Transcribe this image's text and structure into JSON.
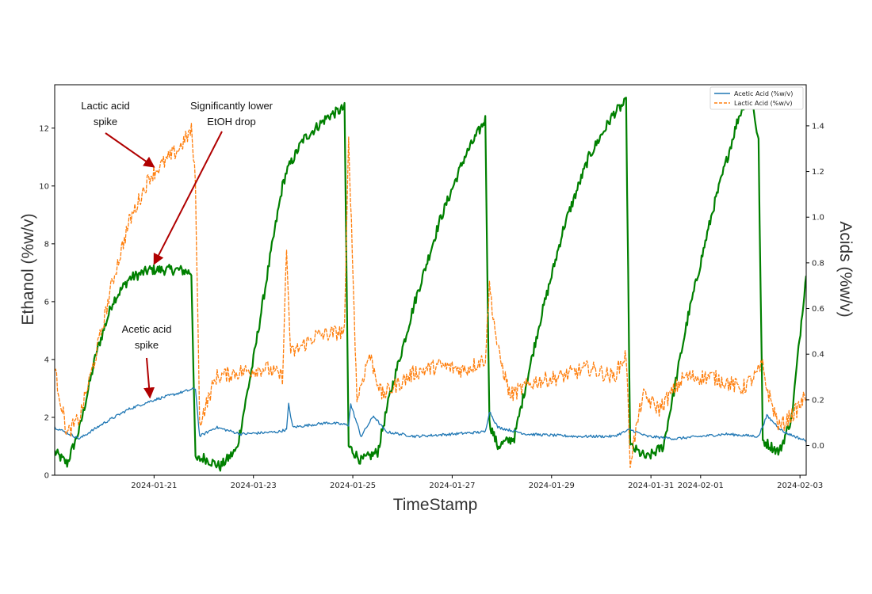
{
  "chart_data": {
    "type": "line",
    "xlabel": "TimeStamp",
    "ylabel_left": "Ethanol (%w/v)",
    "ylabel_right": "Acids (%w/v)",
    "x_range": [
      "2024-01-19T00:00",
      "2024-02-03T03:00"
    ],
    "ylim_left": [
      0,
      13.5
    ],
    "ylim_right": [
      -0.13,
      1.58
    ],
    "x_ticks": [
      "2024-01-21",
      "2024-01-23",
      "2024-01-25",
      "2024-01-27",
      "2024-01-29",
      "2024-01-31",
      "2024-02-01",
      "2024-02-03"
    ],
    "y_ticks_left": [
      0,
      2,
      4,
      6,
      8,
      10,
      12
    ],
    "y_ticks_right": [
      0.0,
      0.2,
      0.4,
      0.6,
      0.8,
      1.0,
      1.2,
      1.4
    ],
    "y_tick_labels_left": [
      "0",
      "2",
      "4",
      "6",
      "8",
      "10",
      "12"
    ],
    "y_tick_labels_right": [
      "0.0",
      "0.2",
      "0.4",
      "0.6",
      "0.8",
      "1.0",
      "1.2",
      "1.4"
    ],
    "grid": false,
    "legend": "top-right",
    "series": [
      {
        "name": "",
        "axis": "left",
        "color": "#008000",
        "style": "solid",
        "noise": 0.18,
        "points": [
          [
            "2024-01-19T00:00",
            0.8
          ],
          [
            "2024-01-19T06:00",
            0.4
          ],
          [
            "2024-01-19T12:00",
            1.6
          ],
          [
            "2024-01-19T20:00",
            4.2
          ],
          [
            "2024-01-20T04:00",
            6.0
          ],
          [
            "2024-01-20T12:00",
            6.8
          ],
          [
            "2024-01-20T22:00",
            7.1
          ],
          [
            "2024-01-21T12:00",
            7.1
          ],
          [
            "2024-01-21T18:00",
            7.0
          ],
          [
            "2024-01-21T20:00",
            0.5
          ],
          [
            "2024-01-22T00:00",
            0.6
          ],
          [
            "2024-01-22T08:00",
            0.3
          ],
          [
            "2024-01-22T16:00",
            0.9
          ],
          [
            "2024-01-23T00:00",
            4.0
          ],
          [
            "2024-01-23T08:00",
            7.5
          ],
          [
            "2024-01-23T14:00",
            10.0
          ],
          [
            "2024-01-23T16:00",
            10.5
          ],
          [
            "2024-01-24T00:00",
            11.6
          ],
          [
            "2024-01-24T12:00",
            12.4
          ],
          [
            "2024-01-24T20:00",
            12.7
          ],
          [
            "2024-01-24T22:00",
            1.0
          ],
          [
            "2024-01-25T04:00",
            0.5
          ],
          [
            "2024-01-25T12:00",
            0.8
          ],
          [
            "2024-01-25T18:00",
            2.8
          ],
          [
            "2024-01-26T06:00",
            6.0
          ],
          [
            "2024-01-26T18:00",
            8.8
          ],
          [
            "2024-01-27T06:00",
            11.0
          ],
          [
            "2024-01-27T16:00",
            12.3
          ],
          [
            "2024-01-27T18:00",
            1.8
          ],
          [
            "2024-01-27T22:00",
            1.0
          ],
          [
            "2024-01-28T06:00",
            1.3
          ],
          [
            "2024-01-28T18:00",
            5.2
          ],
          [
            "2024-01-29T06:00",
            8.6
          ],
          [
            "2024-01-29T18:00",
            11.0
          ],
          [
            "2024-01-30T06:00",
            12.5
          ],
          [
            "2024-01-30T12:00",
            12.9
          ],
          [
            "2024-01-30T14:00",
            1.0
          ],
          [
            "2024-01-30T22:00",
            0.6
          ],
          [
            "2024-01-31T06:00",
            1.0
          ],
          [
            "2024-01-31T18:00",
            5.5
          ],
          [
            "2024-02-01T06:00",
            9.2
          ],
          [
            "2024-02-01T18:00",
            12.3
          ],
          [
            "2024-02-02T00:00",
            13.4
          ],
          [
            "2024-02-02T04:00",
            11.5
          ],
          [
            "2024-02-02T06:00",
            1.2
          ],
          [
            "2024-02-02T14:00",
            0.8
          ],
          [
            "2024-02-02T20:00",
            2.0
          ],
          [
            "2024-02-03T03:00",
            7.0
          ]
        ]
      },
      {
        "name": "Acetic Acid (%w/v)",
        "axis": "right",
        "color": "#1f77b4",
        "style": "solid",
        "noise": 0.006,
        "points": [
          [
            "2024-01-19T00:00",
            0.08
          ],
          [
            "2024-01-19T12:00",
            0.03
          ],
          [
            "2024-01-20T00:00",
            0.1
          ],
          [
            "2024-01-20T12:00",
            0.16
          ],
          [
            "2024-01-21T00:00",
            0.2
          ],
          [
            "2024-01-21T12:00",
            0.23
          ],
          [
            "2024-01-21T20:00",
            0.25
          ],
          [
            "2024-01-21T22:00",
            0.04
          ],
          [
            "2024-01-22T06:00",
            0.08
          ],
          [
            "2024-01-22T18:00",
            0.05
          ],
          [
            "2024-01-23T12:00",
            0.06
          ],
          [
            "2024-01-23T16:00",
            0.07
          ],
          [
            "2024-01-23T17:00",
            0.18
          ],
          [
            "2024-01-23T19:00",
            0.08
          ],
          [
            "2024-01-24T12:00",
            0.1
          ],
          [
            "2024-01-24T22:00",
            0.09
          ],
          [
            "2024-01-24T23:00",
            0.18
          ],
          [
            "2024-01-25T04:00",
            0.04
          ],
          [
            "2024-01-25T10:00",
            0.13
          ],
          [
            "2024-01-25T16:00",
            0.06
          ],
          [
            "2024-01-26T06:00",
            0.04
          ],
          [
            "2024-01-27T00:00",
            0.05
          ],
          [
            "2024-01-27T16:00",
            0.06
          ],
          [
            "2024-01-27T18:00",
            0.15
          ],
          [
            "2024-01-27T22:00",
            0.08
          ],
          [
            "2024-01-28T12:00",
            0.05
          ],
          [
            "2024-01-29T12:00",
            0.04
          ],
          [
            "2024-01-30T06:00",
            0.04
          ],
          [
            "2024-01-30T14:00",
            0.07
          ],
          [
            "2024-01-30T22:00",
            0.04
          ],
          [
            "2024-01-31T12:00",
            0.03
          ],
          [
            "2024-02-01T12:00",
            0.05
          ],
          [
            "2024-02-02T04:00",
            0.04
          ],
          [
            "2024-02-02T08:00",
            0.13
          ],
          [
            "2024-02-02T16:00",
            0.06
          ],
          [
            "2024-02-03T03:00",
            0.02
          ]
        ]
      },
      {
        "name": "Lactic Acid (%w/v)",
        "axis": "right",
        "color": "#ff7f0e",
        "style": "dashed",
        "noise": 0.035,
        "points": [
          [
            "2024-01-19T00:00",
            0.33
          ],
          [
            "2024-01-19T06:00",
            0.05
          ],
          [
            "2024-01-19T12:00",
            0.12
          ],
          [
            "2024-01-19T20:00",
            0.4
          ],
          [
            "2024-01-20T04:00",
            0.72
          ],
          [
            "2024-01-20T12:00",
            0.98
          ],
          [
            "2024-01-20T22:00",
            1.18
          ],
          [
            "2024-01-21T12:00",
            1.3
          ],
          [
            "2024-01-21T18:00",
            1.38
          ],
          [
            "2024-01-21T20:00",
            1.15
          ],
          [
            "2024-01-21T22:00",
            0.1
          ],
          [
            "2024-01-22T06:00",
            0.3
          ],
          [
            "2024-01-22T16:00",
            0.32
          ],
          [
            "2024-01-23T06:00",
            0.34
          ],
          [
            "2024-01-23T14:00",
            0.3
          ],
          [
            "2024-01-23T16:00",
            0.85
          ],
          [
            "2024-01-23T18:00",
            0.4
          ],
          [
            "2024-01-24T06:00",
            0.48
          ],
          [
            "2024-01-24T20:00",
            0.5
          ],
          [
            "2024-01-24T22:00",
            1.35
          ],
          [
            "2024-01-25T02:00",
            0.2
          ],
          [
            "2024-01-25T08:00",
            0.4
          ],
          [
            "2024-01-25T14:00",
            0.22
          ],
          [
            "2024-01-26T06:00",
            0.32
          ],
          [
            "2024-01-26T18:00",
            0.35
          ],
          [
            "2024-01-27T06:00",
            0.33
          ],
          [
            "2024-01-27T16:00",
            0.38
          ],
          [
            "2024-01-27T18:00",
            0.7
          ],
          [
            "2024-01-27T22:00",
            0.42
          ],
          [
            "2024-01-28T04:00",
            0.22
          ],
          [
            "2024-01-28T16:00",
            0.28
          ],
          [
            "2024-01-29T04:00",
            0.3
          ],
          [
            "2024-01-29T18:00",
            0.34
          ],
          [
            "2024-01-30T06:00",
            0.3
          ],
          [
            "2024-01-30T12:00",
            0.4
          ],
          [
            "2024-01-30T14:00",
            -0.07
          ],
          [
            "2024-01-30T20:00",
            0.22
          ],
          [
            "2024-01-31T04:00",
            0.16
          ],
          [
            "2024-01-31T16:00",
            0.3
          ],
          [
            "2024-02-01T06:00",
            0.3
          ],
          [
            "2024-02-01T20:00",
            0.25
          ],
          [
            "2024-02-02T02:00",
            0.3
          ],
          [
            "2024-02-02T06:00",
            0.35
          ],
          [
            "2024-02-02T08:00",
            0.25
          ],
          [
            "2024-02-02T14:00",
            0.08
          ],
          [
            "2024-02-02T22:00",
            0.15
          ],
          [
            "2024-02-03T03:00",
            0.22
          ]
        ]
      }
    ],
    "annotations": [
      {
        "lines": [
          "Lactic acid",
          "spike"
        ],
        "target": [
          "2024-01-21T00:00",
          1.22
        ],
        "target_axis": "right"
      },
      {
        "lines": [
          "Significantly lower",
          "EtOH drop"
        ],
        "target": [
          "2024-01-21T00:00",
          7.3
        ],
        "target_axis": "left"
      },
      {
        "lines": [
          "Acetic acid",
          "spike"
        ],
        "target": [
          "2024-01-20T22:00",
          0.21
        ],
        "target_axis": "right"
      }
    ]
  }
}
